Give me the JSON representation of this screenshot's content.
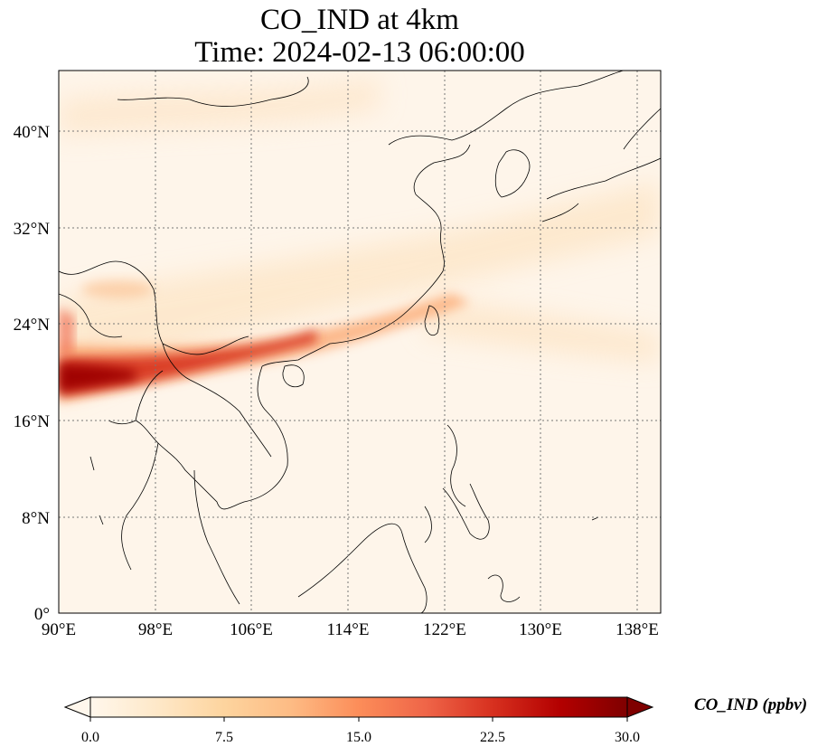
{
  "title": {
    "line1": "CO_IND at 4km",
    "line2": "Time: 2024-02-13 06:00:00"
  },
  "map": {
    "projection": "PlateCarree",
    "lon_range": [
      90,
      140
    ],
    "lat_range": [
      0,
      45
    ],
    "gridlines": "dotted",
    "lon_ticks": [
      {
        "value": 90,
        "label": "90°E"
      },
      {
        "value": 98,
        "label": "98°E"
      },
      {
        "value": 106,
        "label": "106°E"
      },
      {
        "value": 114,
        "label": "114°E"
      },
      {
        "value": 122,
        "label": "122°E"
      },
      {
        "value": 130,
        "label": "130°E"
      },
      {
        "value": 138,
        "label": "138°E"
      }
    ],
    "lat_ticks": [
      {
        "value": 0,
        "label": "0°"
      },
      {
        "value": 8,
        "label": "8°N"
      },
      {
        "value": 16,
        "label": "16°N"
      },
      {
        "value": 24,
        "label": "24°N"
      },
      {
        "value": 32,
        "label": "32°N"
      },
      {
        "value": 40,
        "label": "40°N"
      }
    ]
  },
  "colorbar": {
    "label": "CO_IND (ppbv)",
    "cmap": "OrRd",
    "range": [
      0,
      30
    ],
    "extend": "both",
    "ticks": [
      "0.0",
      "7.5",
      "15.0",
      "22.5",
      "30.0"
    ],
    "colors": [
      "#fff7ec",
      "#fee8c8",
      "#fdd49e",
      "#fdbb84",
      "#fc8d59",
      "#ef6548",
      "#d7301f",
      "#b30000",
      "#7f0000"
    ]
  }
}
